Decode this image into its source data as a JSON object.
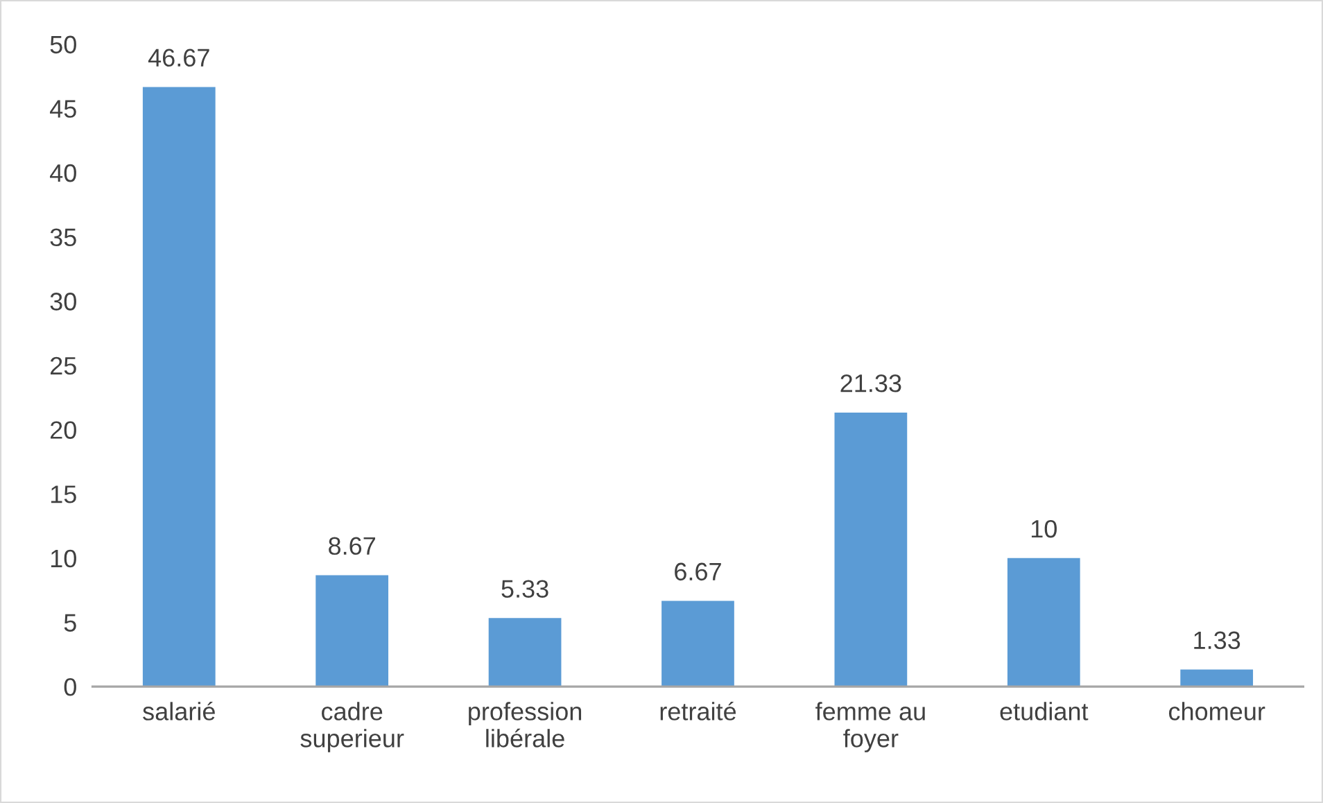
{
  "chart_data": {
    "type": "bar",
    "categories": [
      "salarié",
      "cadre superieur",
      "profession libérale",
      "retraité",
      "femme au foyer",
      "etudiant",
      "chomeur"
    ],
    "values": [
      46.67,
      8.67,
      5.33,
      6.67,
      21.33,
      10,
      1.33
    ],
    "color": "#5b9bd5",
    "ylim": [
      0,
      50
    ],
    "yticks": [
      0,
      5,
      10,
      15,
      20,
      25,
      30,
      35,
      40,
      45,
      50
    ],
    "grid": false,
    "data_labels": true
  }
}
